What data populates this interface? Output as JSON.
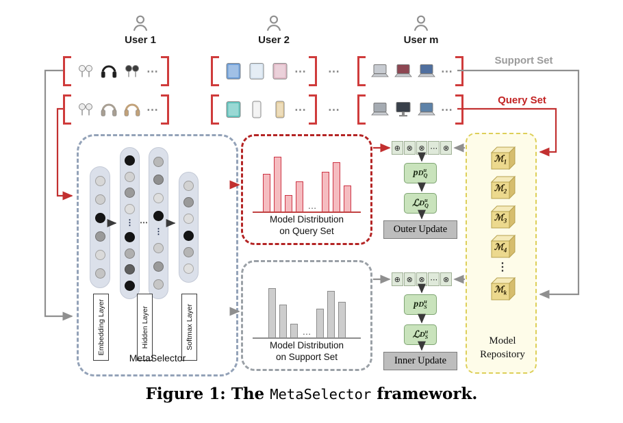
{
  "figure": {
    "caption_prefix": "Figure 1: The ",
    "caption_name": "MetaSelector",
    "caption_suffix": " framework."
  },
  "misc": {
    "hdots": "⋯",
    "vdots": "⋮"
  },
  "set_labels": {
    "support": "Support Set",
    "query": "Query Set"
  },
  "users": [
    {
      "label": "User 1",
      "support_items": [
        {
          "type": "earbuds",
          "color": "#f2f2f2"
        },
        {
          "type": "headphones",
          "color": "#1f1f1f"
        },
        {
          "type": "earbuds",
          "color": "#3c3c3c"
        }
      ],
      "query_items": [
        {
          "type": "earbuds",
          "color": "#ececec"
        },
        {
          "type": "headphones",
          "color": "#a89f93"
        },
        {
          "type": "headphones",
          "color": "#c2a27a"
        }
      ]
    },
    {
      "label": "User 2",
      "support_items": [
        {
          "type": "tablet",
          "color": "#6f9fd8"
        },
        {
          "type": "tablet",
          "color": "#d7e4f0"
        },
        {
          "type": "tablet",
          "color": "#e0b9c6"
        }
      ],
      "query_items": [
        {
          "type": "tablet",
          "color": "#63c4bd"
        },
        {
          "type": "phone",
          "color": "#efefef"
        },
        {
          "type": "phone",
          "color": "#e6cf9f"
        }
      ]
    },
    {
      "label": "User m",
      "support_items": [
        {
          "type": "laptop",
          "color": "#c7cbd1"
        },
        {
          "type": "laptop",
          "color": "#8d4652"
        },
        {
          "type": "laptop",
          "color": "#4f6f9f"
        }
      ],
      "query_items": [
        {
          "type": "laptop",
          "color": "#a5abb2"
        },
        {
          "type": "monitor",
          "color": "#39404a"
        },
        {
          "type": "laptop",
          "color": "#5d82a8"
        }
      ]
    }
  ],
  "metaselector": {
    "title": "MetaSelector",
    "layer_labels": [
      "Embedding Layer",
      "Hidden Layer",
      "Softmax Layer"
    ],
    "pills": [
      {
        "nodes": [
          "#d7d7d7",
          "#cfcfcf",
          "#151515",
          "#9a9a9a",
          "#dadada",
          "#c4c4c4"
        ]
      },
      {
        "nodes": [
          "#151515",
          "#d2d2d2",
          "#9a9a9a",
          "#dedede",
          "dots",
          "#151515",
          "#afafaf",
          "#5f5f5f",
          "#151515"
        ]
      },
      {
        "nodes": [
          "#b8b8b8",
          "#8f8f8f",
          "#dedede",
          "#151515",
          "dots",
          "#cfcfcf",
          "#9a9a9a",
          "#c6c6c6"
        ]
      },
      {
        "nodes": [
          "#d2d2d2",
          "#9a9a9a",
          "#dedede",
          "#151515",
          "#b5b5b5",
          "#e0e0e0"
        ]
      }
    ]
  },
  "chart_data": [
    {
      "type": "bar",
      "name": "query_distribution",
      "title": "Model Distribution on Query Set",
      "label1": "Model Distribution",
      "label2": "on Query Set",
      "gap": "…",
      "left_bars": [
        55,
        80,
        24,
        44
      ],
      "right_bars": [
        58,
        72,
        38
      ],
      "bar_fill": "#f5bcc0",
      "bar_stroke": "#cc3344"
    },
    {
      "type": "bar",
      "name": "support_distribution",
      "title": "Model Distribution on Support Set",
      "label1": "Model Distribution",
      "label2": "on Support Set",
      "gap": "…",
      "left_bars": [
        72,
        48,
        20
      ],
      "right_bars": [
        42,
        68,
        52
      ],
      "bar_fill": "#cdcdcd",
      "bar_stroke": "#8c8c8c"
    }
  ],
  "ops": {
    "symbols": [
      "⊕",
      "⊗",
      "⊗",
      "⋯",
      "⊗"
    ],
    "query": {
      "p": {
        "base": "p",
        "d": "D",
        "idx": "Q",
        "sup": "u"
      },
      "l": {
        "base": "ℒ",
        "d": "D",
        "idx": "Q",
        "sup": "u"
      },
      "update": "Outer Update"
    },
    "support": {
      "p": {
        "base": "p",
        "d": "D",
        "idx": "S",
        "sup": "u"
      },
      "l": {
        "base": "ℒ",
        "d": "D",
        "idx": "S",
        "sup": "u"
      },
      "update": "Inner Update"
    }
  },
  "repository": {
    "symbol": "ℳ",
    "models": [
      "1",
      "2",
      "3",
      "4",
      "k"
    ],
    "dots": "⋮",
    "label1": "Model",
    "label2": "Repository"
  },
  "colors": {
    "query_red": "#c22323",
    "support_gray": "#9b9b9b",
    "metaselector_border": "#93a2b8",
    "repository_yellow": "#ddcf58",
    "op_green": "#c9e3bc",
    "update_gray": "#bdbdbd"
  }
}
